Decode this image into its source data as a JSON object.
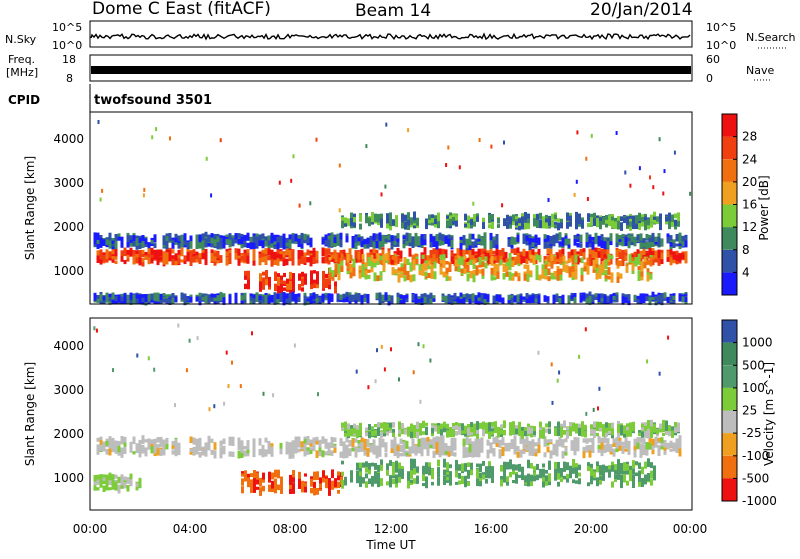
{
  "header": {
    "station": "Dome C East (fitACF)",
    "beam": "Beam 14",
    "date": "20/Jan/2014"
  },
  "top_panels": {
    "nsky_label": "N.Sky",
    "nsky_tick_high": "10^5",
    "nsky_tick_low": "10^0",
    "nsearch_label": "N.Search",
    "nsearch_tick_high": "10^5",
    "nsearch_tick_low": "10^0",
    "freq_label_line1": "Freq.",
    "freq_label_line2": "[MHz]",
    "freq_tick_high": "18",
    "freq_tick_low": "8",
    "nave_label": "Nave",
    "nave_tick_high": "60",
    "nave_tick_low": "0",
    "cpid_label": "CPID",
    "cpid_text": "twofsound 3501"
  },
  "chart_data": [
    {
      "type": "heatmap",
      "name": "Power",
      "ylabel": "Slant Range [km]",
      "yticks": [
        "1000",
        "2000",
        "3000",
        "4000"
      ],
      "ylim": [
        200,
        4500
      ],
      "xlim": [
        0,
        24
      ],
      "colorbar_label": "Power [dB]",
      "colorbar_ticks": [
        "4",
        "8",
        "12",
        "16",
        "20",
        "24",
        "28"
      ],
      "colorbar_colors": [
        "#1a1aff",
        "#2f52a8",
        "#3f8a5c",
        "#7ccc3a",
        "#f0a020",
        "#f07010",
        "#f04010",
        "#ee1111"
      ],
      "bands": [
        {
          "start": 0.1,
          "end": 23.8,
          "center": 1250,
          "width": 260,
          "level": 26
        },
        {
          "start": 0.1,
          "end": 23.8,
          "center": 1600,
          "width": 220,
          "level": 6
        },
        {
          "start": 6.0,
          "end": 9.8,
          "center": 700,
          "width": 420,
          "level": 28
        },
        {
          "start": 9.5,
          "end": 22.5,
          "center": 1000,
          "width": 500,
          "level": 18
        },
        {
          "start": 10.0,
          "end": 23.5,
          "center": 2050,
          "width": 250,
          "level": 10
        },
        {
          "start": 0.1,
          "end": 23.8,
          "center": 300,
          "width": 120,
          "level": 5
        }
      ]
    },
    {
      "type": "heatmap",
      "name": "Velocity",
      "ylabel": "Slant Range [km]",
      "yticks": [
        "1000",
        "2000",
        "3000",
        "4000"
      ],
      "ylim": [
        200,
        4500
      ],
      "xlim": [
        0,
        24
      ],
      "colorbar_label": "Velocity [m s^-1]",
      "colorbar_ticks": [
        "1000",
        "500",
        "100",
        "25",
        "-25",
        "-100",
        "-500",
        "-1000"
      ],
      "colorbar_colors": [
        "#2f52a8",
        "#3f8a5c",
        "#4f9a6a",
        "#7ccc3a",
        "#bdbdbd",
        "#f0a020",
        "#f07010",
        "#ee1111"
      ],
      "bands": [
        {
          "start": 0.1,
          "end": 23.8,
          "center": 1600,
          "width": 350,
          "level": 0
        },
        {
          "start": 0.1,
          "end": 2.0,
          "center": 800,
          "width": 300,
          "level": 40
        },
        {
          "start": 6.0,
          "end": 10.0,
          "center": 800,
          "width": 450,
          "level": -400
        },
        {
          "start": 10.0,
          "end": 22.5,
          "center": 1000,
          "width": 500,
          "level": 150
        },
        {
          "start": 10.0,
          "end": 23.5,
          "center": 2000,
          "width": 250,
          "level": 60
        }
      ]
    }
  ],
  "x_axis": {
    "ticks": [
      "00:00",
      "04:00",
      "08:00",
      "12:00",
      "16:00",
      "20:00",
      "00:00"
    ],
    "label": "Time UT"
  }
}
